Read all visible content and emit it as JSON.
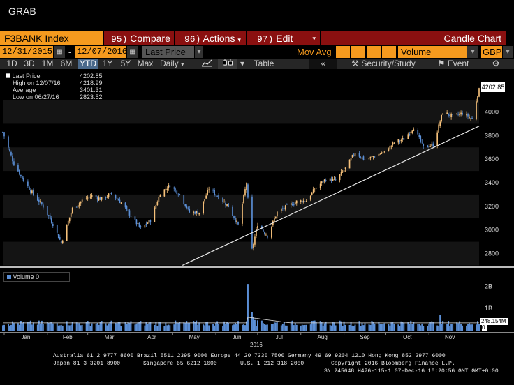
{
  "app_title": "GRAB",
  "toolbar": {
    "security": "F3BANK Index",
    "compare_num": "95)",
    "compare_label": "Compare",
    "actions_num": "96)",
    "actions_label": "Actions",
    "edit_num": "97)",
    "edit_label": "Edit",
    "chart_type": "Candle Chart"
  },
  "range_bar": {
    "start_date": "12/31/2015",
    "end_date": "12/07/2016",
    "price_field": "Last Price",
    "mov_avg_label": "Mov Avg",
    "volume_field": "Volume",
    "currency": "GBP"
  },
  "period_bar": {
    "periods": [
      "1D",
      "3D",
      "1M",
      "6M",
      "YTD",
      "1Y",
      "5Y",
      "Max"
    ],
    "active_period": "YTD",
    "frequency": "Daily",
    "table_label": "Table",
    "security_study_label": "Security/Study",
    "event_label": "Event"
  },
  "legend": {
    "last_price_label": "Last Price",
    "last_price_value": "4202.85",
    "high_label": "High on 12/07/16",
    "high_value": "4218.99",
    "average_label": "Average",
    "average_value": "3401.31",
    "low_label": "Low on 06/27/16",
    "low_value": "2823.52"
  },
  "last_price_tag": "4202.85",
  "volume_legend": "Volume 0",
  "volume_tag": "248.154M",
  "volume_zero": "0",
  "colors": {
    "up_candle": "#f5c07a",
    "down_candle": "#5b8fd6",
    "accent_orange": "#f59a1e",
    "button_red": "#8a1010"
  },
  "chart_data": [
    {
      "type": "candlestick",
      "series_name": "F3BANK Index",
      "x_labels": [
        "Jan",
        "Feb",
        "Mar",
        "Apr",
        "May",
        "Jun",
        "Jul",
        "Aug",
        "Sep",
        "Oct",
        "Nov"
      ],
      "x_year_label": "2016",
      "y_ticks": [
        2800,
        3000,
        3200,
        3400,
        3600,
        3800,
        4000
      ],
      "ylim": [
        2700,
        4250
      ],
      "close_path": [
        [
          "2015-12-31",
          3830
        ],
        [
          "2016-01-08",
          3560
        ],
        [
          "2016-01-15",
          3420
        ],
        [
          "2016-01-22",
          3300
        ],
        [
          "2016-01-29",
          3200
        ],
        [
          "2016-02-05",
          3050
        ],
        [
          "2016-02-11",
          2890
        ],
        [
          "2016-02-19",
          3180
        ],
        [
          "2016-02-26",
          3250
        ],
        [
          "2016-03-04",
          3290
        ],
        [
          "2016-03-11",
          3260
        ],
        [
          "2016-03-18",
          3310
        ],
        [
          "2016-03-25",
          3230
        ],
        [
          "2016-04-01",
          3120
        ],
        [
          "2016-04-08",
          3010
        ],
        [
          "2016-04-15",
          3080
        ],
        [
          "2016-04-22",
          3310
        ],
        [
          "2016-04-29",
          3380
        ],
        [
          "2016-05-06",
          3300
        ],
        [
          "2016-05-13",
          3150
        ],
        [
          "2016-05-20",
          3150
        ],
        [
          "2016-05-27",
          3350
        ],
        [
          "2016-06-03",
          3280
        ],
        [
          "2016-06-10",
          3200
        ],
        [
          "2016-06-17",
          3040
        ],
        [
          "2016-06-23",
          3400
        ],
        [
          "2016-06-27",
          2830
        ],
        [
          "2016-07-01",
          3050
        ],
        [
          "2016-07-08",
          2950
        ],
        [
          "2016-07-15",
          3150
        ],
        [
          "2016-07-22",
          3200
        ],
        [
          "2016-07-29",
          3240
        ],
        [
          "2016-08-05",
          3250
        ],
        [
          "2016-08-12",
          3360
        ],
        [
          "2016-08-19",
          3430
        ],
        [
          "2016-08-26",
          3420
        ],
        [
          "2016-09-02",
          3520
        ],
        [
          "2016-09-09",
          3660
        ],
        [
          "2016-09-16",
          3590
        ],
        [
          "2016-09-23",
          3630
        ],
        [
          "2016-09-30",
          3660
        ],
        [
          "2016-10-07",
          3740
        ],
        [
          "2016-10-14",
          3770
        ],
        [
          "2016-10-21",
          3870
        ],
        [
          "2016-10-28",
          3700
        ],
        [
          "2016-11-04",
          3720
        ],
        [
          "2016-11-11",
          4000
        ],
        [
          "2016-11-18",
          3960
        ],
        [
          "2016-11-25",
          3990
        ],
        [
          "2016-12-02",
          3940
        ],
        [
          "2016-12-07",
          4203
        ]
      ],
      "trendline": {
        "from": [
          "2016-05-08",
          2700
        ],
        "to": [
          "2016-12-07",
          3880
        ]
      },
      "high": 4218.99,
      "low": 2823.52,
      "last": 4202.85
    },
    {
      "type": "bar",
      "series_name": "Volume",
      "y_ticks_labels": [
        "1B",
        "2B"
      ],
      "y_ticks": [
        1000000000,
        2000000000
      ],
      "ylim": [
        0,
        2700000000
      ],
      "typical_volume": 350000000,
      "spikes": [
        [
          "2016-06-24",
          2100000000
        ],
        [
          "2016-06-27",
          820000000
        ],
        [
          "2016-06-28",
          620000000
        ],
        [
          "2016-06-29",
          480000000
        ],
        [
          "2016-07-01",
          460000000
        ],
        [
          "2016-11-09",
          720000000
        ]
      ],
      "moving_average_peak": 600000000,
      "last_volume_label": "248.154M"
    }
  ],
  "footer": {
    "line1": "Australia 61 2 9777 8600 Brazil 5511 2395 9000 Europe 44 20 7330 7500 Germany 49 69 9204 1210 Hong Kong 852 2977 6000",
    "line2a": "Japan 81 3 3201 8900",
    "line2b": "Singapore 65 6212 1000",
    "line2c": "U.S. 1 212 318 2000",
    "line2d": "Copyright 2016 Bloomberg Finance L.P.",
    "line3": "SN 245648 H476-115-1 07-Dec-16 10:20:56 GMT  GMT+0:00"
  }
}
